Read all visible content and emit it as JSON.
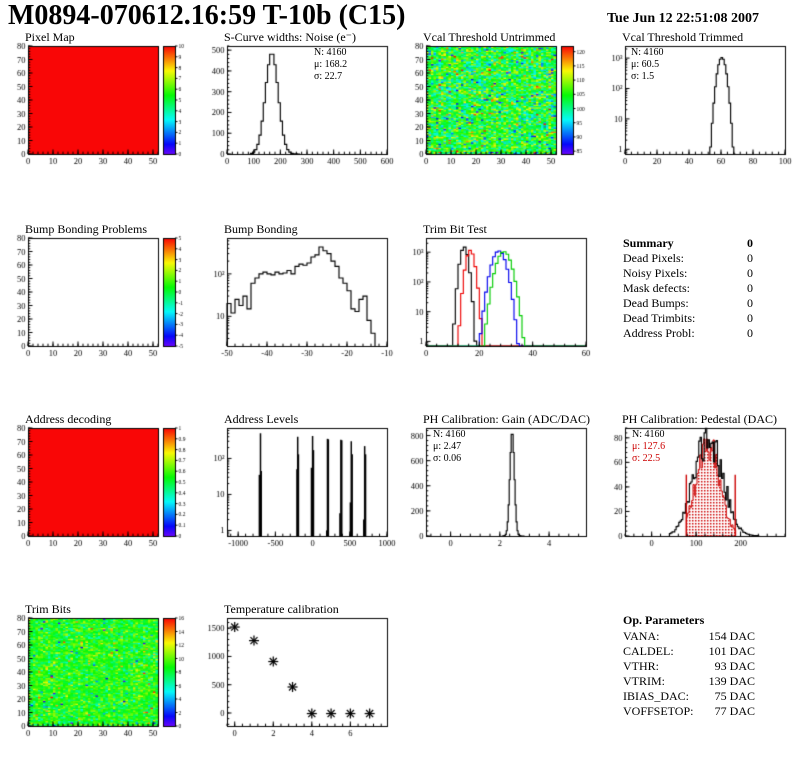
{
  "header": {
    "title": "M0894-070612.16:59 T-10b (C15)",
    "timestamp": "Tue Jun 12 22:51:08 2007"
  },
  "summary": {
    "heading": "Summary",
    "heading_value": "0",
    "rows": [
      {
        "label": "Dead Pixels:",
        "value": "0"
      },
      {
        "label": "Noisy Pixels:",
        "value": "0"
      },
      {
        "label": "Mask defects:",
        "value": "0"
      },
      {
        "label": "Dead Bumps:",
        "value": "0"
      },
      {
        "label": "Dead Trimbits:",
        "value": "0"
      },
      {
        "label": "Address Probl:",
        "value": "0"
      }
    ]
  },
  "op_parameters": {
    "heading": "Op. Parameters",
    "rows": [
      {
        "label": "VANA:",
        "value": "154 DAC"
      },
      {
        "label": "CALDEL:",
        "value": "101 DAC"
      },
      {
        "label": "VTHR:",
        "value": "93 DAC"
      },
      {
        "label": "VTRIM:",
        "value": "139 DAC"
      },
      {
        "label": "IBIAS_DAC:",
        "value": "75 DAC"
      },
      {
        "label": "VOFFSETOP:",
        "value": "77 DAC"
      }
    ]
  },
  "colors": {
    "accent_red": "#cc0000",
    "hist_line": "#000000"
  },
  "chart_data": [
    {
      "id": "pixel-map",
      "title": "Pixel Map",
      "type": "heatmap",
      "mode": "uniform",
      "uniform_value": 10,
      "x": {
        "min": 0,
        "max": 52,
        "ticks": [
          0,
          10,
          20,
          30,
          40,
          50
        ]
      },
      "y": {
        "min": 0,
        "max": 80,
        "ticks": [
          0,
          10,
          20,
          30,
          40,
          50,
          60,
          70,
          80
        ]
      },
      "colorbar": {
        "min": 0,
        "max": 10,
        "labels": [
          "10",
          "9",
          "8",
          "7",
          "6",
          "5",
          "4",
          "3",
          "2",
          "1",
          "0"
        ]
      }
    },
    {
      "id": "scurve-noise",
      "title": "S-Curve widths: Noise (e⁻)",
      "type": "hist",
      "scale": "linear",
      "x": {
        "min": 0,
        "max": 600,
        "ticks": [
          0,
          100,
          200,
          300,
          400,
          500,
          600
        ]
      },
      "y": {
        "min": 0,
        "max": 520,
        "ticks": [
          0,
          100,
          200,
          300,
          400,
          500
        ]
      },
      "stats": {
        "lines": [
          "N: 4160",
          "μ: 168.2",
          "σ: 22.7"
        ],
        "pos": "right"
      },
      "hist": {
        "kind": "gauss",
        "mean": 168,
        "sigma": 24,
        "peak": 487,
        "bin": 8,
        "from": 88,
        "to": 272
      }
    },
    {
      "id": "vcal-untrimmed",
      "title": "Vcal Threshold Untrimmed",
      "type": "heatmap",
      "mode": "noise",
      "noise": {
        "mean": 104,
        "sigma": 5.5,
        "outliers": 0.04,
        "seed": 7
      },
      "x": {
        "min": 0,
        "max": 52,
        "ticks": [
          0,
          10,
          20,
          30,
          40,
          50
        ]
      },
      "y": {
        "min": 0,
        "max": 80,
        "ticks": [
          0,
          10,
          20,
          30,
          40,
          50,
          60,
          70,
          80
        ]
      },
      "colorbar": {
        "min": 84,
        "max": 122,
        "labels": [
          "120",
          "115",
          "110",
          "105",
          "100",
          "95",
          "90",
          "85"
        ]
      }
    },
    {
      "id": "vcal-trimmed",
      "title": "Vcal Threshold Trimmed",
      "type": "hist",
      "scale": "log",
      "x": {
        "min": 0,
        "max": 100,
        "ticks": [
          0,
          20,
          40,
          60,
          80,
          100
        ]
      },
      "y": {
        "logmin": 0.7,
        "logmax": 2500,
        "decades": [
          1,
          10,
          100,
          1000
        ],
        "declabels": [
          "1",
          "10",
          "10²",
          "10³"
        ]
      },
      "stats": {
        "lines": [
          "N: 4160",
          "μ: 60.5",
          "σ:  1.5"
        ],
        "pos": "left"
      },
      "hist": {
        "kind": "gauss",
        "mean": 60.5,
        "sigma": 1.9,
        "peak": 1050,
        "bin": 1,
        "from": 53,
        "to": 69
      }
    },
    {
      "id": "bump-problems",
      "title": "Bump Bonding Problems",
      "type": "heatmap",
      "mode": "empty",
      "x": {
        "min": 0,
        "max": 52,
        "ticks": [
          0,
          10,
          20,
          30,
          40,
          50
        ]
      },
      "y": {
        "min": 0,
        "max": 80,
        "ticks": [
          0,
          10,
          20,
          30,
          40,
          50,
          60,
          70,
          80
        ]
      },
      "colorbar": {
        "min": -5,
        "max": 5,
        "labels": [
          "5",
          "4",
          "3",
          "2",
          "1",
          "0",
          "-1",
          "-2",
          "-3",
          "-4",
          "-5"
        ]
      }
    },
    {
      "id": "bump-bonding",
      "title": "Bump Bonding",
      "type": "hist",
      "scale": "log",
      "x": {
        "min": -50,
        "max": -10,
        "ticks": [
          -50,
          -40,
          -30,
          -20,
          -10
        ]
      },
      "y": {
        "logmin": 2,
        "logmax": 700,
        "decades": [
          10,
          100
        ],
        "declabels": [
          "10",
          "10²"
        ]
      },
      "hist": {
        "kind": "bins",
        "from": -50,
        "bin": 1,
        "values": [
          20,
          12,
          25,
          18,
          30,
          15,
          60,
          80,
          100,
          110,
          100,
          95,
          110,
          100,
          105,
          120,
          100,
          150,
          170,
          160,
          180,
          250,
          280,
          430,
          350,
          300,
          200,
          150,
          80,
          60,
          40,
          15,
          13,
          25,
          30,
          8,
          4
        ]
      }
    },
    {
      "id": "trim-bit-test",
      "title": "Trim Bit Test",
      "type": "multihist",
      "scale": "log",
      "bin": 1,
      "x": {
        "min": 0,
        "max": 60,
        "ticks": [
          0,
          20,
          40,
          60
        ]
      },
      "y": {
        "logmin": 0.7,
        "logmax": 3000,
        "decades": [
          1,
          10,
          100,
          1000
        ],
        "declabels": [
          "1",
          "10",
          "10²",
          "10³"
        ]
      },
      "series": [
        {
          "name": "trim-bits-14",
          "color": "#000000",
          "mean": 14.3,
          "sigma": 1.1,
          "peak": 1500
        },
        {
          "name": "trim-bits-7",
          "color": "#ee0000",
          "mean": 16.6,
          "sigma": 1.2,
          "peak": 1150
        },
        {
          "name": "trim-bits-3",
          "color": "#0000ee",
          "mean": 27.3,
          "sigma": 1.9,
          "peak": 1100
        },
        {
          "name": "trim-bits-0",
          "color": "#00cc00",
          "mean": 29.2,
          "sigma": 2.0,
          "peak": 1050
        }
      ]
    },
    {
      "id": "address-decoding",
      "title": "Address decoding",
      "type": "heatmap",
      "mode": "uniform",
      "uniform_value": 1,
      "x": {
        "min": 0,
        "max": 52,
        "ticks": [
          0,
          10,
          20,
          30,
          40,
          50
        ]
      },
      "y": {
        "min": 0,
        "max": 80,
        "ticks": [
          0,
          10,
          20,
          30,
          40,
          50,
          60,
          70,
          80
        ]
      },
      "colorbar": {
        "min": 0,
        "max": 1,
        "labels": [
          "1",
          "0.9",
          "0.8",
          "0.7",
          "0.6",
          "0.5",
          "0.4",
          "0.3",
          "0.2",
          "0.1",
          "0"
        ]
      }
    },
    {
      "id": "address-levels",
      "title": "Address Levels",
      "type": "spikes",
      "scale": "log",
      "x": {
        "min": -1150,
        "max": 1000,
        "ticks": [
          -1000,
          -500,
          0,
          500,
          1000
        ]
      },
      "y": {
        "logmin": 0.7,
        "logmax": 700,
        "decades": [
          1,
          10,
          100
        ],
        "declabels": [
          "1",
          "10",
          "10²"
        ]
      },
      "spikes": [
        [
          -715,
          35
        ],
        [
          -700,
          500
        ],
        [
          -690,
          45
        ],
        [
          -210,
          50
        ],
        [
          -200,
          400
        ],
        [
          -190,
          130
        ],
        [
          -15,
          55
        ],
        [
          0,
          420
        ],
        [
          12,
          170
        ],
        [
          190,
          1
        ],
        [
          200,
          350
        ],
        [
          212,
          340
        ],
        [
          368,
          3
        ],
        [
          380,
          330
        ],
        [
          392,
          320
        ],
        [
          508,
          6
        ],
        [
          520,
          300
        ],
        [
          532,
          130
        ],
        [
          688,
          2
        ],
        [
          700,
          220
        ],
        [
          712,
          130
        ]
      ]
    },
    {
      "id": "ph-gain",
      "title": "PH Calibration: Gain (ADC/DAC)",
      "type": "hist",
      "scale": "linear",
      "x": {
        "min": -1,
        "max": 5.5,
        "ticks": [
          0,
          2,
          4
        ]
      },
      "y": {
        "min": 0,
        "max": 860,
        "ticks": [
          0,
          200,
          400,
          600,
          800
        ]
      },
      "stats": {
        "lines": [
          "N: 4160",
          "μ: 2.47",
          "σ: 0.06"
        ],
        "pos": "left"
      },
      "hist": {
        "kind": "gauss",
        "mean": 2.5,
        "sigma": 0.09,
        "peak": 830,
        "bin": 0.04,
        "from": 2.1,
        "to": 2.95
      }
    },
    {
      "id": "ph-pedestal",
      "title": "PH Calibration: Pedestal (DAC)",
      "type": "pedestal",
      "x": {
        "min": -60,
        "max": 300,
        "ticks": [
          0,
          100,
          200
        ]
      },
      "y": {
        "min": 0,
        "max": 88,
        "ticks": [
          0,
          20,
          40,
          60,
          80
        ]
      },
      "stats": {
        "lines": [
          "N: 4160",
          "μ: 127.6",
          "σ: 22.5"
        ],
        "pos": "left",
        "red_from": 1
      },
      "black": {
        "mean": 127,
        "sigma": 32,
        "peak": 80,
        "noise": 0.12,
        "bin": 3,
        "from": 40,
        "to": 240,
        "seed": 11
      },
      "red": {
        "mean": 127,
        "sigma": 26,
        "peak": 74,
        "noise": 0.1,
        "bin": 3,
        "from": 78,
        "to": 188,
        "seed": 12
      },
      "vlines": {
        "color": "#cc0000",
        "xs": [
          78,
          188
        ],
        "top": 50
      }
    },
    {
      "id": "trim-bits",
      "title": "Trim Bits",
      "type": "heatmap",
      "mode": "noise",
      "noise": {
        "mean": 8.8,
        "sigma": 1.4,
        "outliers": 0.03,
        "seed": 21
      },
      "x": {
        "min": 0,
        "max": 52,
        "ticks": [
          0,
          10,
          20,
          30,
          40,
          50
        ]
      },
      "y": {
        "min": 0,
        "max": 80,
        "ticks": [
          0,
          10,
          20,
          30,
          40,
          50,
          60,
          70,
          80
        ]
      },
      "colorbar": {
        "min": 0,
        "max": 16,
        "labels": [
          "16",
          "14",
          "12",
          "10",
          "8",
          "6",
          "4",
          "2",
          "0"
        ]
      }
    },
    {
      "id": "temperature-calibration",
      "title": "Temperature calibration",
      "type": "scatter",
      "x": {
        "min": -0.4,
        "max": 7.9,
        "ticks": [
          0,
          2,
          4,
          6
        ]
      },
      "y": {
        "min": -230,
        "max": 1680,
        "ticks": [
          0,
          500,
          1000,
          1500
        ]
      },
      "points": [
        [
          0,
          1520
        ],
        [
          1,
          1280
        ],
        [
          2,
          910
        ],
        [
          3,
          460
        ],
        [
          4,
          -10
        ],
        [
          5,
          -10
        ],
        [
          6,
          -10
        ],
        [
          7,
          -10
        ]
      ]
    }
  ]
}
